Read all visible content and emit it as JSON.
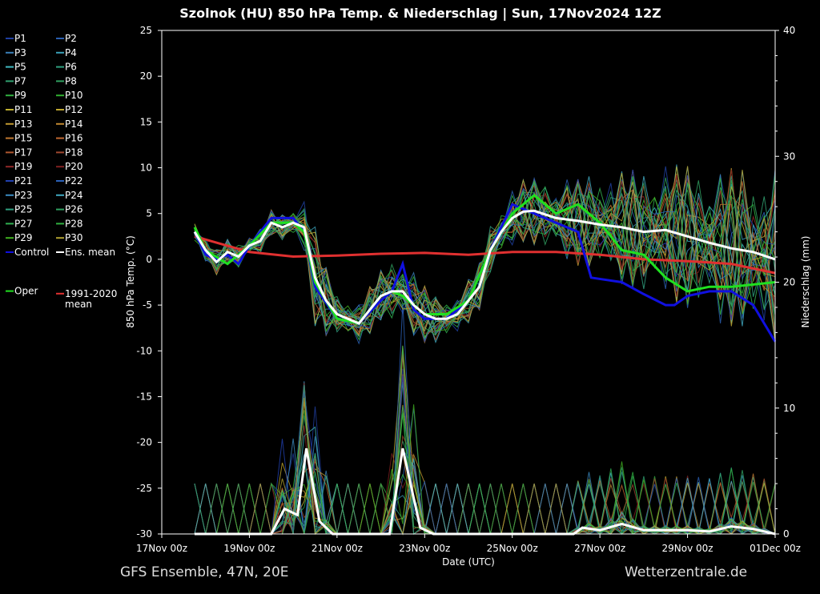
{
  "chart_data": {
    "type": "line",
    "title": "Szolnok  (HU)  850 hPa Temp. & Niederschlag | Sun, 17Nov2024 12Z",
    "xlabel": "Date (UTC)",
    "ylabel": "850 hPa Temp. (°C)",
    "y2label": "Niederschlag (mm)",
    "x_unit": "days since 17Nov 00z",
    "xlim": [
      0,
      14
    ],
    "ylim": [
      -30,
      25
    ],
    "y2lim": [
      0,
      40
    ],
    "x_ticks": [
      "17Nov 00z",
      "19Nov 00z",
      "21Nov 00z",
      "23Nov 00z",
      "25Nov 00z",
      "27Nov 00z",
      "29Nov 00z",
      "01Dec 00z"
    ],
    "y_ticks": [
      25,
      20,
      15,
      10,
      5,
      0,
      -5,
      -10,
      -15,
      -20,
      -25,
      -30
    ],
    "y2_ticks": [
      40,
      30,
      20,
      10,
      0
    ],
    "grid": false,
    "legend_position": "left",
    "legend": [
      "P1",
      "P2",
      "P3",
      "P4",
      "P5",
      "P6",
      "P7",
      "P8",
      "P9",
      "P10",
      "P11",
      "P12",
      "P13",
      "P14",
      "P15",
      "P16",
      "P17",
      "P18",
      "P19",
      "P20",
      "P21",
      "P22",
      "P23",
      "P24",
      "P25",
      "P26",
      "P27",
      "P28",
      "P29",
      "P30",
      "Control",
      "Ens. mean",
      "1991-2020 mean",
      "Oper"
    ],
    "member_colors": [
      "#1f3fa0",
      "#2a5fb0",
      "#3a80b8",
      "#3aa0b8",
      "#40b8c0",
      "#30a080",
      "#30a070",
      "#30a060",
      "#30b040",
      "#30b030",
      "#c0b030",
      "#c0a830",
      "#c09830",
      "#c08830",
      "#c07830",
      "#c06830",
      "#b05830",
      "#a04830",
      "#902828",
      "#802020",
      "#2040b0",
      "#2a60b8",
      "#3a8ac0",
      "#40a8c0",
      "#30a080",
      "#30a060",
      "#30b050",
      "#30b040",
      "#40b020",
      "#b0a030"
    ],
    "colors": {
      "control": "#1010e0",
      "mean": "#ffffff",
      "clim": "#e03030",
      "oper": "#20e020"
    },
    "series": [
      {
        "name": "Ens. mean",
        "x": [
          0.75,
          1,
          1.25,
          1.5,
          1.75,
          2,
          2.25,
          2.5,
          2.75,
          3,
          3.25,
          3.5,
          3.75,
          4,
          4.25,
          4.5,
          4.75,
          5,
          5.25,
          5.5,
          5.75,
          6,
          6.25,
          6.5,
          6.75,
          7,
          7.25,
          7.5,
          7.75,
          8,
          8.25,
          8.5,
          9,
          9.5,
          10,
          10.5,
          11,
          11.5,
          12,
          12.5,
          13,
          13.5,
          14
        ],
        "y": [
          3,
          1,
          -0.3,
          0.8,
          0.3,
          1.5,
          2,
          4,
          3.5,
          4,
          3.5,
          -2,
          -4.5,
          -6,
          -6.5,
          -7,
          -5.5,
          -4,
          -3.5,
          -3.5,
          -5,
          -6,
          -6.5,
          -6.5,
          -6,
          -4.5,
          -3,
          1,
          3,
          4.5,
          5.2,
          5.3,
          4.5,
          4.2,
          3.8,
          3.5,
          3,
          3.2,
          2.5,
          1.8,
          1.2,
          0.8,
          0
        ]
      },
      {
        "name": "Control",
        "x": [
          0.75,
          1,
          1.25,
          1.5,
          1.75,
          2,
          2.5,
          3,
          3.25,
          3.5,
          4,
          4.5,
          5,
          5.25,
          5.5,
          5.75,
          6,
          6.5,
          7,
          7.5,
          8,
          8.5,
          9,
          9.5,
          9.8,
          10.5,
          11,
          11.5,
          11.7,
          12,
          12.5,
          13,
          13.5,
          14
        ],
        "y": [
          3,
          0.5,
          0,
          0.5,
          -0.5,
          1.5,
          4.5,
          4.5,
          3,
          -3,
          -6.5,
          -7,
          -4.5,
          -3.5,
          -0.5,
          -5.5,
          -6.5,
          -6.5,
          -4.5,
          1,
          6,
          5,
          4,
          3,
          -2,
          -2.5,
          -3.8,
          -5,
          -5,
          -4,
          -3.5,
          -3.5,
          -5,
          -9
        ]
      },
      {
        "name": "Oper",
        "x": [
          0.75,
          1,
          1.5,
          2,
          2.5,
          3,
          3.25,
          3.5,
          4,
          4.5,
          5,
          5.25,
          5.5,
          5.75,
          6,
          6.5,
          7,
          7.5,
          8,
          8.5,
          9,
          9.5,
          10,
          10.5,
          11,
          11.5,
          12,
          12.5,
          13,
          14
        ],
        "y": [
          3.5,
          1,
          -0.5,
          1.5,
          4,
          4,
          3,
          -2.5,
          -6.5,
          -7,
          -4,
          -3.5,
          -4,
          -5,
          -6,
          -6,
          -4.5,
          1,
          5,
          7,
          5,
          6,
          4,
          1,
          0.5,
          -2,
          -3.5,
          -3,
          -3,
          -2.5
        ]
      },
      {
        "name": "1991-2020 mean",
        "x": [
          0.75,
          2,
          3,
          4,
          5,
          6,
          7,
          8,
          9,
          10,
          11,
          12,
          13,
          14
        ],
        "y": [
          2.5,
          0.8,
          0.3,
          0.4,
          0.6,
          0.7,
          0.5,
          0.8,
          0.8,
          0.5,
          0,
          -0.2,
          -0.5,
          -1.5
        ]
      }
    ],
    "precip_mean": {
      "name": "Ens. mean precipitation (mm)",
      "x": [
        0.75,
        2.5,
        2.8,
        3.1,
        3.3,
        3.6,
        3.9,
        5.2,
        5.5,
        5.9,
        6.2,
        9.4,
        9.6,
        10,
        10.5,
        11,
        11.5,
        12,
        12.5,
        13,
        13.5,
        14
      ],
      "y": [
        0,
        0,
        2,
        1.5,
        6.8,
        1,
        0,
        0,
        6.8,
        0.5,
        0,
        0,
        0.5,
        0.3,
        0.8,
        0.3,
        0.3,
        0.3,
        0.2,
        0.6,
        0.4,
        0
      ]
    },
    "member_spread": {
      "x": [
        0.75,
        3,
        3.5,
        4,
        5,
        5.5,
        6.5,
        7.5,
        9,
        11,
        14
      ],
      "y": [
        1,
        1,
        4,
        1.5,
        2,
        3,
        1.5,
        2,
        3,
        5,
        7
      ]
    }
  },
  "footer": {
    "left": "GFS Ensemble, 47N, 20E",
    "right": "Wetterzentrale.de"
  }
}
